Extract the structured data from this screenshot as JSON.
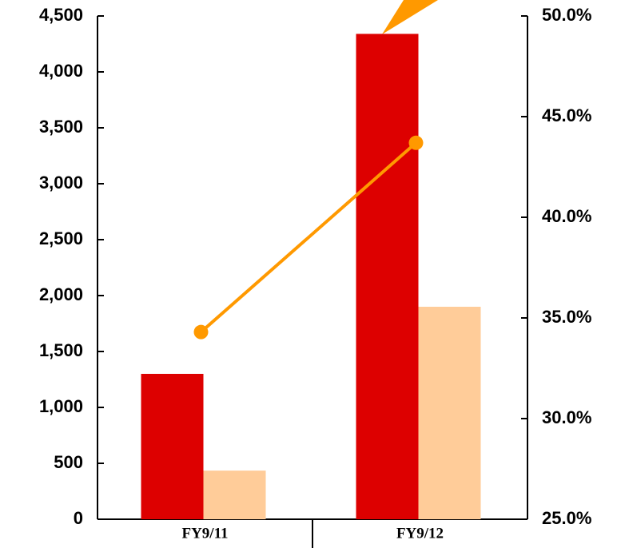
{
  "chart_data": {
    "type": "bar",
    "categories": [
      "FY9/11",
      "FY9/12"
    ],
    "series": [
      {
        "type": "bar",
        "color": "#dd0000",
        "values": [
          1300,
          4340
        ]
      },
      {
        "type": "bar",
        "color": "#ffcc99",
        "values": [
          435,
          1900
        ]
      },
      {
        "type": "line",
        "axis": "y2",
        "color": "#ff9900",
        "values": [
          34.3,
          43.7
        ]
      }
    ],
    "ylim": [
      0,
      4500
    ],
    "yticks": [
      0,
      500,
      {
        "value": 1000,
        "label": "1,000"
      },
      {
        "value": 1500,
        "label": "1,500"
      },
      {
        "value": 2000,
        "label": "2,000"
      },
      {
        "value": 2500,
        "label": "2,500"
      },
      {
        "value": 3000,
        "label": "3,000"
      },
      {
        "value": 3500,
        "label": "3,500"
      },
      {
        "value": 4000,
        "label": "4,000"
      },
      {
        "value": 4500,
        "label": "4,500"
      }
    ],
    "y2lim": [
      25,
      50
    ],
    "y2ticks": [
      {
        "value": 25,
        "label": "25.0%"
      },
      {
        "value": 30,
        "label": "30.0%"
      },
      {
        "value": 35,
        "label": "35.0%"
      },
      {
        "value": 40,
        "label": "40.0%"
      },
      {
        "value": 45,
        "label": "45.0%"
      },
      {
        "value": 50,
        "label": "50.0%"
      }
    ],
    "grid": false
  }
}
